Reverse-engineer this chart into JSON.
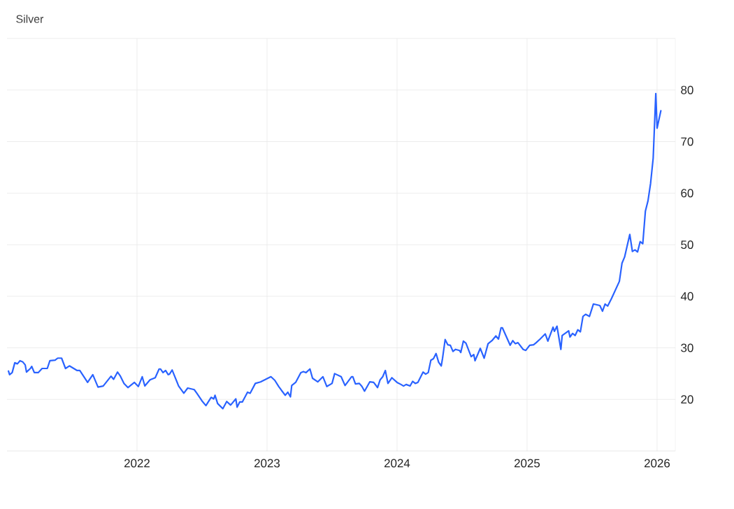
{
  "chart_data": {
    "type": "line",
    "title": "Silver",
    "series": [
      {
        "color": "#2962ff",
        "x": [
          2021.01,
          2021.02,
          2021.04,
          2021.06,
          2021.08,
          2021.1,
          2021.12,
          2021.14,
          2021.15,
          2021.18,
          2021.19,
          2021.21,
          2021.24,
          2021.27,
          2021.31,
          2021.33,
          2021.37,
          2021.39,
          2021.42,
          2021.45,
          2021.48,
          2021.54,
          2021.56,
          2021.62,
          2021.66,
          2021.7,
          2021.74,
          2021.8,
          2021.82,
          2021.85,
          2021.87,
          2021.9,
          2021.93,
          2021.98,
          2022.01,
          2022.04,
          2022.06,
          2022.1,
          2022.14,
          2022.17,
          2022.18,
          2022.2,
          2022.22,
          2022.24,
          2022.25,
          2022.27,
          2022.32,
          2022.36,
          2022.39,
          2022.44,
          2022.46,
          2022.5,
          2022.53,
          2022.57,
          2022.59,
          2022.6,
          2022.62,
          2022.66,
          2022.69,
          2022.72,
          2022.76,
          2022.77,
          2022.79,
          2022.81,
          2022.85,
          2022.87,
          2022.91,
          2022.95,
          2022.99,
          2023.03,
          2023.06,
          2023.09,
          2023.11,
          2023.14,
          2023.16,
          2023.18,
          2023.19,
          2023.22,
          2023.26,
          2023.28,
          2023.3,
          2023.33,
          2023.35,
          2023.39,
          2023.43,
          2023.46,
          2023.5,
          2023.52,
          2023.57,
          2023.6,
          2023.65,
          2023.66,
          2023.68,
          2023.71,
          2023.73,
          2023.75,
          2023.79,
          2023.82,
          2023.85,
          2023.87,
          2023.89,
          2023.91,
          2023.93,
          2023.96,
          2024.0,
          2024.03,
          2024.05,
          2024.07,
          2024.1,
          2024.12,
          2024.14,
          2024.16,
          2024.2,
          2024.22,
          2024.24,
          2024.26,
          2024.28,
          2024.3,
          2024.32,
          2024.34,
          2024.35,
          2024.37,
          2024.39,
          2024.41,
          2024.43,
          2024.45,
          2024.48,
          2024.49,
          2024.51,
          2024.53,
          2024.57,
          2024.59,
          2024.6,
          2024.64,
          2024.67,
          2024.7,
          2024.73,
          2024.76,
          2024.78,
          2024.8,
          2024.81,
          2024.87,
          2024.89,
          2024.91,
          2024.93,
          2024.97,
          2024.99,
          2025.02,
          2025.05,
          2025.07,
          2025.1,
          2025.14,
          2025.16,
          2025.2,
          2025.21,
          2025.23,
          2025.26,
          2025.27,
          2025.32,
          2025.33,
          2025.35,
          2025.37,
          2025.39,
          2025.41,
          2025.43,
          2025.45,
          2025.48,
          2025.51,
          2025.56,
          2025.58,
          2025.6,
          2025.62,
          2025.65,
          2025.71,
          2025.73,
          2025.75,
          2025.79,
          2025.81,
          2025.83,
          2025.85,
          2025.87,
          2025.89,
          2025.91,
          2025.93,
          2025.95,
          2025.97,
          2025.99,
          2026.0,
          2026.03
        ],
        "values": [
          25.6,
          24.8,
          25.2,
          27.1,
          26.9,
          27.5,
          27.3,
          26.7,
          25.3,
          26.0,
          26.4,
          25.2,
          25.2,
          26.0,
          26.0,
          27.5,
          27.6,
          28.0,
          28.0,
          26.0,
          26.5,
          25.6,
          25.6,
          23.3,
          24.8,
          22.4,
          22.6,
          24.5,
          23.9,
          25.3,
          24.6,
          23.1,
          22.3,
          23.3,
          22.5,
          24.4,
          22.6,
          23.8,
          24.2,
          25.9,
          25.9,
          25.2,
          25.6,
          24.8,
          24.9,
          25.7,
          22.6,
          21.2,
          22.2,
          21.9,
          21.2,
          19.7,
          18.8,
          20.4,
          20.1,
          20.8,
          19.2,
          18.2,
          19.6,
          18.9,
          20.1,
          18.5,
          19.5,
          19.5,
          21.4,
          21.2,
          23.1,
          23.4,
          23.9,
          24.4,
          23.7,
          22.5,
          21.8,
          20.8,
          21.4,
          20.5,
          22.7,
          23.3,
          25.2,
          25.4,
          25.2,
          25.9,
          24.1,
          23.4,
          24.4,
          22.5,
          23.1,
          25.0,
          24.4,
          22.7,
          24.4,
          24.4,
          23.0,
          23.1,
          22.5,
          21.6,
          23.4,
          23.3,
          22.3,
          23.8,
          24.4,
          25.6,
          23.1,
          24.2,
          23.3,
          22.9,
          22.6,
          22.9,
          22.6,
          23.5,
          23.1,
          23.3,
          25.3,
          24.9,
          25.2,
          27.6,
          27.9,
          28.9,
          27.2,
          26.5,
          28.0,
          31.6,
          30.6,
          30.5,
          29.3,
          29.7,
          29.5,
          29.1,
          31.3,
          30.9,
          28.3,
          28.7,
          27.5,
          29.9,
          28.0,
          30.8,
          31.4,
          32.3,
          31.7,
          33.9,
          33.9,
          30.5,
          31.4,
          30.8,
          31.0,
          29.7,
          29.5,
          30.5,
          30.6,
          31.0,
          31.7,
          32.7,
          31.3,
          34.0,
          33.2,
          34.2,
          29.7,
          32.4,
          33.3,
          32.1,
          32.8,
          32.4,
          33.5,
          33.1,
          36.1,
          36.5,
          36.1,
          38.5,
          38.2,
          37.1,
          38.5,
          38.1,
          39.6,
          42.9,
          46.4,
          47.6,
          52.0,
          48.7,
          49.0,
          48.6,
          50.6,
          50.2,
          56.5,
          58.5,
          61.9,
          66.8,
          79.3,
          72.6,
          76.1
        ]
      }
    ],
    "xlim": [
      2021.0,
      2026.14
    ],
    "xticks": [
      2022,
      2023,
      2024,
      2025,
      2026
    ],
    "ylim": [
      10,
      90
    ],
    "yticks": [
      20,
      30,
      40,
      50,
      60,
      70,
      80,
      {
        "value": 90,
        "label": null
      }
    ],
    "grid": true,
    "marker": "none",
    "line_style": "solid"
  }
}
